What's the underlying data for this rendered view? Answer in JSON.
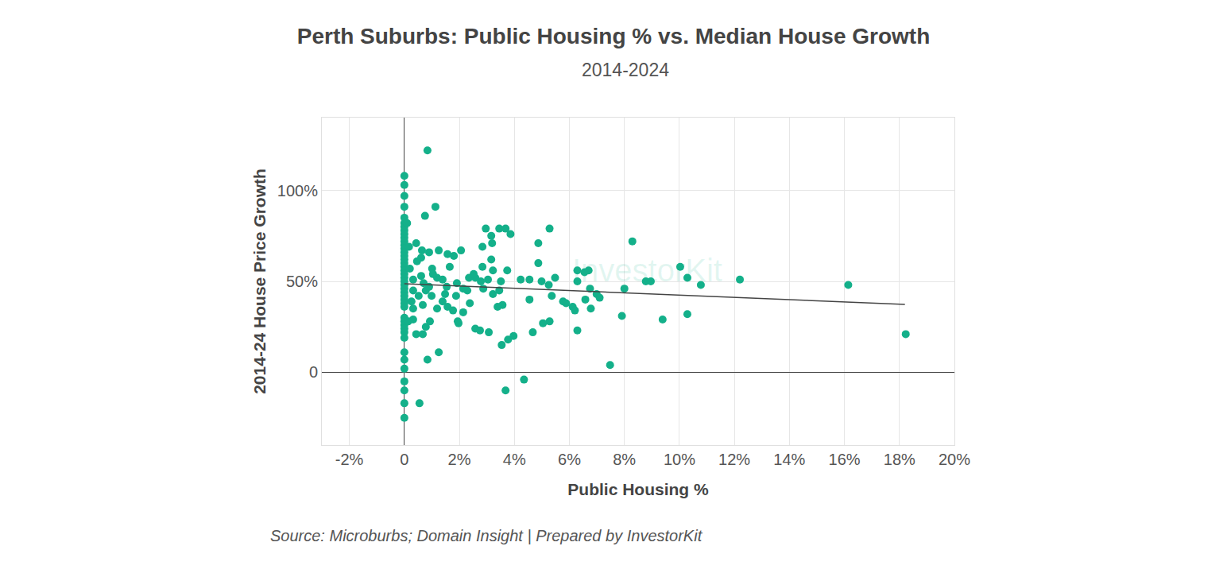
{
  "chart_data": {
    "type": "scatter",
    "title": "Perth Suburbs: Public Housing % vs. Median House Growth",
    "subtitle": "2014-2024",
    "x_label": "Public Housing %",
    "y_label": "2014-24 House Price Growth",
    "source": "Source: Microburbs; Domain Insight | Prepared by InvestorKit",
    "watermark": "InvestorKit",
    "grid": true,
    "xlim": [
      -3,
      20
    ],
    "xticks": [
      {
        "value": -2,
        "label": "-2%"
      },
      0,
      {
        "value": 2,
        "label": "2%"
      },
      {
        "value": 4,
        "label": "4%"
      },
      {
        "value": 6,
        "label": "6%"
      },
      {
        "value": 8,
        "label": "8%"
      },
      {
        "value": 10,
        "label": "10%"
      },
      {
        "value": 12,
        "label": "12%"
      },
      {
        "value": 14,
        "label": "14%"
      },
      {
        "value": 16,
        "label": "16%"
      },
      {
        "value": 18,
        "label": "18%"
      },
      {
        "value": 20,
        "label": "20%"
      }
    ],
    "ylim": [
      -40,
      140
    ],
    "yticks": [
      0,
      {
        "value": 50,
        "label": "50%"
      },
      {
        "value": 100,
        "label": "100%"
      }
    ],
    "series": [
      {
        "type": "scatter",
        "marker": "circle",
        "color": "#14b08a",
        "x": [
          0,
          0,
          0,
          0,
          0,
          0,
          0,
          0,
          0,
          0,
          0,
          0,
          0,
          0,
          0,
          0,
          0,
          0,
          0,
          0,
          0,
          0,
          0,
          0,
          0,
          0,
          0,
          0,
          0,
          0,
          0,
          0,
          0,
          0,
          0,
          0,
          0,
          0,
          0,
          0,
          0,
          0,
          0.84,
          0.75,
          1.13,
          0.1,
          2.96,
          3.45,
          3.68,
          5.28,
          3.16,
          3.86,
          8.29,
          4.87,
          3.19,
          2.84,
          2.06,
          1.25,
          0.64,
          0.9,
          1.57,
          1.8,
          3.16,
          4.87,
          2.84,
          10.03,
          1.65,
          1.01,
          6.29,
          6.7,
          3.74,
          3.22,
          6.55,
          5.48,
          6.29,
          10.29,
          12.2,
          8.78,
          8.96,
          4.99,
          4.55,
          2.58,
          2.35,
          3.51,
          16.14,
          10.78,
          5.25,
          6.75,
          8.0,
          2.87,
          1.91,
          1.19,
          1.39,
          0.32,
          0.9,
          6.99,
          7.1,
          5.36,
          4.55,
          3.22,
          3.45,
          2.29,
          1.48,
          1.88,
          0.99,
          5.77,
          5.88,
          6.58,
          6.12,
          6.2,
          6.78,
          2.38,
          3.57,
          3.39,
          1.39,
          1.57,
          1.77,
          1.19,
          0.67,
          0.32,
          2.14,
          7.91,
          10.29,
          9.39,
          5.28,
          5.04,
          1.94,
          1.97,
          2.58,
          2.75,
          3.07,
          6.29,
          4.67,
          3.97,
          3.77,
          3.54,
          0.43,
          0.67,
          0.78,
          0.93,
          0.32,
          0.14,
          18.23,
          1.25,
          0.84,
          7.48,
          4.35,
          3.68,
          0.55,
          0.2,
          0.46,
          0.61,
          0.32,
          0.52,
          0.7,
          0.17,
          0.43,
          0.61,
          0.26,
          0.78,
          1.04,
          1.54,
          2.14,
          2.52,
          2.78,
          3.04,
          4.23
        ],
        "values": [
          108,
          103,
          97,
          91,
          85,
          82,
          80,
          78,
          76,
          74,
          72,
          70,
          68,
          66,
          64,
          62,
          60,
          58,
          56,
          54,
          52,
          50,
          48,
          46,
          44,
          42,
          40,
          38,
          36,
          30,
          28,
          26,
          24,
          22,
          19,
          11,
          7,
          2,
          -5,
          -10,
          -17,
          -25,
          122,
          86,
          91,
          82,
          79,
          79,
          79,
          79,
          75,
          76,
          72,
          71,
          71,
          69,
          67,
          67,
          67,
          66,
          65,
          64,
          62,
          60,
          58,
          58,
          58,
          57,
          56,
          56,
          56,
          56,
          55,
          52,
          50,
          52,
          51,
          50,
          50,
          50,
          51,
          52,
          52,
          50,
          48,
          48,
          48,
          46,
          46,
          46,
          49,
          52,
          51,
          51,
          47,
          43,
          41,
          42,
          40,
          43,
          45,
          45,
          43,
          42,
          42,
          39,
          38,
          40,
          36,
          34,
          35,
          38,
          37,
          36,
          39,
          36,
          34,
          35,
          37,
          35,
          33,
          31,
          32,
          29,
          28,
          27,
          28,
          27,
          24,
          23,
          22,
          23,
          22,
          20,
          18,
          15,
          21,
          21,
          25,
          28,
          29,
          28,
          21,
          11,
          7,
          4,
          -4,
          -10,
          -17,
          57,
          61,
          53,
          45,
          42,
          49,
          69,
          71,
          63,
          39,
          45,
          54,
          47,
          46,
          54,
          50,
          51,
          51
        ]
      },
      {
        "type": "line",
        "line_style": "solid",
        "color": "#444444",
        "x": [
          0,
          18.2
        ],
        "values": [
          48.7,
          37.3
        ]
      }
    ]
  }
}
